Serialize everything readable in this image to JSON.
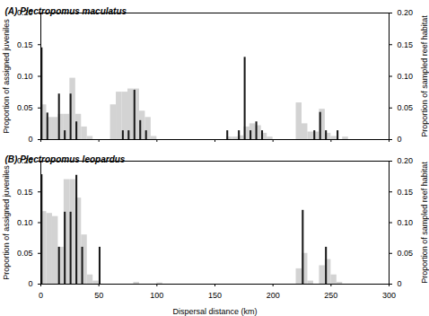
{
  "chart_data": [
    {
      "type": "bar",
      "title": "(A) Plectropomus maculatus",
      "y_label": "Proportion of assigned juveniles",
      "y2_label": "Proportion of sampled reef habitat",
      "xlim": [
        0,
        300
      ],
      "xticks": [
        0,
        50,
        100,
        150,
        200,
        250,
        300
      ],
      "ylim": [
        0,
        0.2
      ],
      "yticks": [
        0,
        0.05,
        {
          "value": 0.1,
          "label": "0.10"
        },
        0.15,
        {
          "value": 0.2,
          "label": "0.20"
        }
      ],
      "y2lim": [
        0,
        0.2
      ],
      "y2ticks": [
        0,
        0.05,
        {
          "value": 0.1,
          "label": "0.10"
        },
        0.15,
        {
          "value": 0.2,
          "label": "0.20"
        }
      ],
      "tick_labels": "y",
      "series": [
        {
          "color": "#d3d3d3",
          "axis": "y2",
          "x": [
            2.5,
            7.5,
            12.5,
            17.5,
            22.5,
            27.5,
            32.5,
            37.5,
            42.5,
            62.5,
            67.5,
            72.5,
            77.5,
            82.5,
            87.5,
            92.5,
            97.5,
            162.5,
            167.5,
            172.5,
            177.5,
            182.5,
            187.5,
            192.5,
            197.5,
            222.5,
            227.5,
            232.5,
            237.5,
            242.5,
            247.5,
            252.5,
            262.5
          ],
          "values": [
            0.055,
            0.035,
            0.035,
            0.04,
            0.04,
            0.097,
            0.04,
            0.02,
            0.005,
            0.055,
            0.075,
            0.075,
            0.08,
            0.08,
            0.045,
            0.035,
            0.005,
            0.004,
            0.004,
            0.006,
            0.02,
            0.025,
            0.022,
            0.01,
            0.004,
            0.058,
            0.025,
            0.012,
            0.012,
            0.048,
            0.01,
            0.005,
            0.004
          ]
        },
        {
          "color": "#1a1a1a",
          "x": [
            1,
            6,
            16,
            21,
            26,
            31,
            71,
            76,
            81,
            86,
            91,
            161,
            171,
            176,
            181,
            186,
            191,
            236,
            241,
            246,
            256
          ],
          "values": [
            0.145,
            0.042,
            0.072,
            0.014,
            0.072,
            0.028,
            0.014,
            0.014,
            0.078,
            0.03,
            0.014,
            0.014,
            0.014,
            0.13,
            0.014,
            0.028,
            0.014,
            0.014,
            0.043,
            0.014,
            0.014
          ]
        }
      ]
    },
    {
      "type": "bar",
      "title": "(B) Plectropomus leopardus",
      "x_label": "Dispersal distance (km)",
      "y_label": "Proportion of assigned juveniles",
      "y2_label": "Proportion of sampled reef habitat",
      "xlim": [
        0,
        300
      ],
      "xticks": [
        0,
        50,
        100,
        150,
        200,
        250,
        300
      ],
      "ylim": [
        0,
        0.2
      ],
      "yticks": [
        0,
        0.05,
        {
          "value": 0.1,
          "label": "0.10"
        },
        0.15,
        {
          "value": 0.2,
          "label": "0.20"
        }
      ],
      "y2lim": [
        0,
        0.2
      ],
      "y2ticks": [
        0,
        0.05,
        {
          "value": 0.1,
          "label": "0.10"
        },
        0.15,
        {
          "value": 0.2,
          "label": "0.20"
        }
      ],
      "series": [
        {
          "color": "#d3d3d3",
          "axis": "y2",
          "x": [
            2.5,
            7.5,
            12.5,
            17.5,
            22.5,
            27.5,
            32.5,
            37.5,
            42.5,
            47.5,
            82.5,
            102.5,
            222.5,
            227.5,
            232.5,
            242.5,
            247.5,
            252.5,
            257.5
          ],
          "values": [
            0.118,
            0.115,
            0.11,
            0.06,
            0.17,
            0.17,
            0.14,
            0.08,
            0.015,
            0.005,
            0.003,
            0.002,
            0.025,
            0.05,
            0.005,
            0.03,
            0.04,
            0.015,
            0.003
          ]
        },
        {
          "color": "#1a1a1a",
          "x": [
            1,
            16,
            21,
            26,
            31,
            36,
            51,
            226,
            246
          ],
          "values": [
            0.178,
            0.06,
            0.117,
            0.117,
            0.177,
            0.06,
            0.06,
            0.12,
            0.06
          ]
        }
      ]
    }
  ]
}
